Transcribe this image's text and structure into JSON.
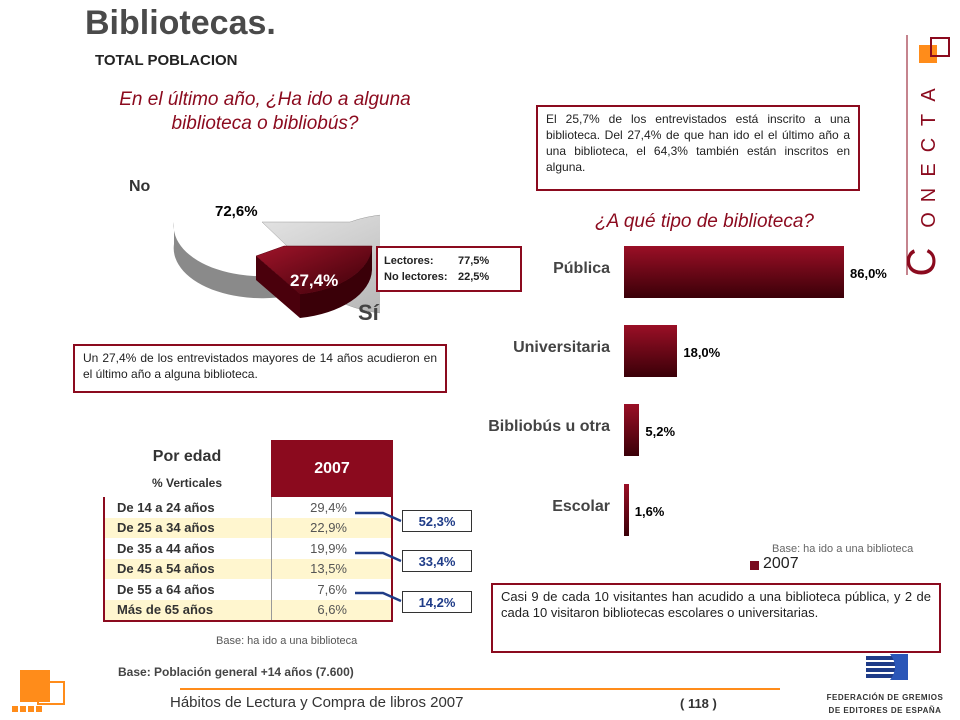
{
  "header": {
    "title": "Bibliotecas.",
    "subtitle": "TOTAL POBLACION"
  },
  "questions": {
    "q1": "En el último año, ¿Ha ido a alguna biblioteca o bibliobús?",
    "q2": "¿A qué tipo de biblioteca?"
  },
  "notes": {
    "library": "El 25,7% de los entrevistados está inscrito a una biblioteca. Del 27,4% de que han ido el el último año a una biblioteca, el 64,3% también están inscritos en alguna.",
    "survey": "Un 27,4% de los entrevistados mayores de 14 años acudieron en el último año a alguna biblioteca.",
    "visits": "Casi 9 de cada 10 visitantes han acudido a una biblioteca pública, y 2 de cada 10 visitaron bibliotecas escolares o universitarias."
  },
  "readers": {
    "lectores_label": "Lectores:",
    "lectores_value": "77,5%",
    "no_lectores_label": "No lectores:",
    "no_lectores_value": "22,5%"
  },
  "colors": {
    "accent": "#8b0a1e",
    "pie_no": "#c8c8c8",
    "pie_si": "#7a0a1e",
    "orange": "#ff8c1a",
    "table_alt": "#fff6cf",
    "group_text": "#1f3c88"
  },
  "chart_data": [
    {
      "type": "pie",
      "labels": [
        "No",
        "Sí"
      ],
      "values": [
        72.6,
        27.4
      ],
      "value_labels": [
        "72,6%",
        "27,4%"
      ]
    },
    {
      "type": "bar",
      "orientation": "horizontal",
      "categories": [
        "Pública",
        "Universitaria",
        "Bibliobús u otra",
        "Escolar"
      ],
      "series": [
        {
          "name": "2007",
          "values": [
            86.0,
            18.0,
            5.2,
            1.6
          ]
        }
      ],
      "value_labels": [
        "86,0%",
        "18,0%",
        "5,2%",
        "1,6%"
      ],
      "xlim": [
        0,
        100
      ],
      "legend_placement": "bottom-right",
      "note": "Base: ha ido a una biblioteca"
    },
    {
      "type": "table",
      "header": {
        "title": "Por edad",
        "sub": "% Verticales",
        "year": "2007"
      },
      "rows": [
        {
          "label": "De 14 a 24 años",
          "value": "29,4%"
        },
        {
          "label": "De 25 a 34 años",
          "value": "22,9%"
        },
        {
          "label": "De 35 a 44 años",
          "value": "19,9%"
        },
        {
          "label": "De 45 a 54 años",
          "value": "13,5%"
        },
        {
          "label": "De 55 a 64 años",
          "value": "7,6%"
        },
        {
          "label": "Más de 65 años",
          "value": "6,6%"
        }
      ],
      "groups": [
        "52,3%",
        "33,4%",
        "14,2%"
      ],
      "note": "Base: ha ido a una biblioteca"
    }
  ],
  "footer": {
    "base": "Base: Población general +14 años (7.600)",
    "text": "Hábitos de Lectura y Compra de libros 2007",
    "page": "( 118 )"
  },
  "logos": {
    "conecta_letters": [
      "C",
      "O",
      "N",
      "E",
      "C",
      "T",
      "A"
    ],
    "federacion_line1": "FEDERACIÓN DE GREMIOS",
    "federacion_line2": "DE EDITORES DE ESPAÑA"
  }
}
